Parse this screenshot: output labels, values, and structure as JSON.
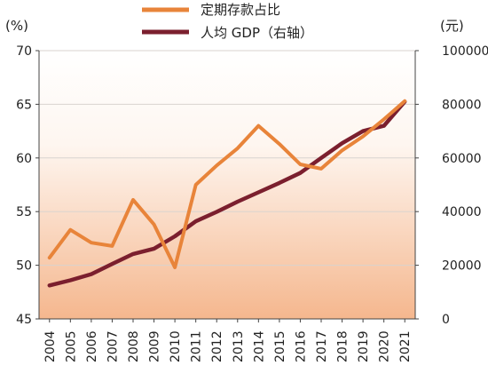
{
  "chart_data": {
    "type": "line",
    "categories": [
      "2004",
      "2005",
      "2006",
      "2007",
      "2008",
      "2009",
      "2010",
      "2011",
      "2012",
      "2013",
      "2014",
      "2015",
      "2016",
      "2017",
      "2018",
      "2019",
      "2020",
      "2021"
    ],
    "series": [
      {
        "name": "定期存款占比",
        "axis": "left",
        "color": "#e8843a",
        "values": [
          50.7,
          53.3,
          52.1,
          51.8,
          56.1,
          53.8,
          49.8,
          57.5,
          59.3,
          60.9,
          63.0,
          61.3,
          59.4,
          59.0,
          60.7,
          62.0,
          63.6,
          65.3
        ]
      },
      {
        "name": "人均 GDP（右轴）",
        "axis": "right",
        "color": "#7b1f2e",
        "values": [
          12500,
          14400,
          16700,
          20500,
          24200,
          26200,
          30800,
          36400,
          39900,
          43700,
          47200,
          50700,
          54400,
          60000,
          65500,
          70000,
          72000,
          81000
        ]
      }
    ],
    "y_left": {
      "unit": "(%)",
      "ylim": [
        45,
        70
      ],
      "ticks": [
        "45",
        "50",
        "55",
        "60",
        "65",
        "70"
      ]
    },
    "y_right": {
      "unit": "(元)",
      "ylim": [
        0,
        100000
      ],
      "ticks": [
        "0",
        "20000",
        "40000",
        "60000",
        "80000",
        "100000"
      ]
    },
    "grid": true,
    "legend": "top-center",
    "colors": {
      "background_top": "#ffffff",
      "background_bottom": "#f5b78e",
      "grid": "#d9d3cf"
    }
  }
}
